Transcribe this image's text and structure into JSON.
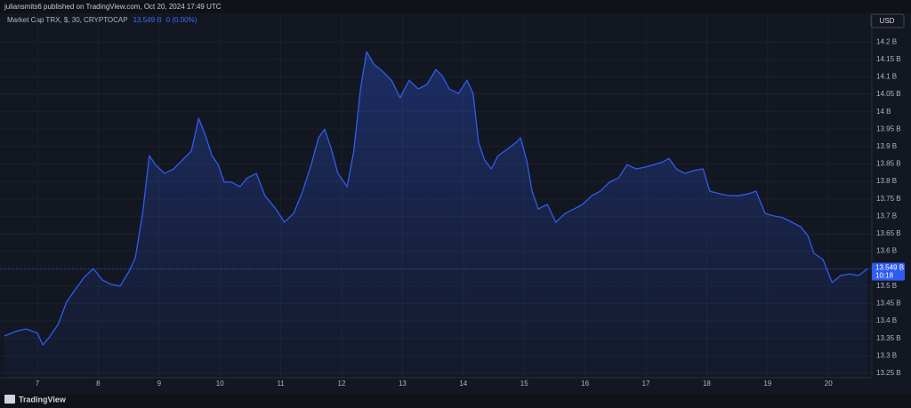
{
  "header": {
    "title": "juliansmits6 published on TradingView.com, Oct 20, 2024 17:49 UTC"
  },
  "footer": {
    "brand": "TradingView"
  },
  "chart_data": {
    "type": "area",
    "legend": {
      "symbol": "Market Cap TRX, $, 30, CRYPTOCAP",
      "value": "13.549 B",
      "change": "0 (0.00%)"
    },
    "currency": "USD",
    "last_price": {
      "value": 13.549,
      "label": "13.549 B"
    },
    "countdown": "10:18",
    "grid": true,
    "series": [
      {
        "name": "Market Cap TRX",
        "color": "#2f5cf0",
        "x": [
          6.46,
          6.68,
          6.82,
          7.0,
          7.09,
          7.19,
          7.34,
          7.48,
          7.63,
          7.77,
          7.92,
          8.07,
          8.21,
          8.36,
          8.51,
          8.61,
          8.73,
          8.84,
          8.94,
          9.09,
          9.24,
          9.38,
          9.53,
          9.65,
          9.75,
          9.87,
          9.97,
          10.07,
          10.19,
          10.33,
          10.45,
          10.6,
          10.74,
          10.92,
          11.06,
          11.21,
          11.36,
          11.5,
          11.62,
          11.72,
          11.82,
          11.94,
          12.09,
          12.2,
          12.31,
          12.41,
          12.53,
          12.67,
          12.82,
          12.96,
          13.11,
          13.26,
          13.4,
          13.55,
          13.65,
          13.77,
          13.92,
          14.06,
          14.16,
          14.25,
          14.35,
          14.46,
          14.57,
          14.72,
          14.87,
          14.94,
          15.04,
          15.13,
          15.23,
          15.38,
          15.52,
          15.67,
          15.82,
          15.96,
          16.11,
          16.25,
          16.4,
          16.55,
          16.69,
          16.84,
          16.99,
          17.13,
          17.28,
          17.38,
          17.5,
          17.64,
          17.79,
          17.94,
          18.05,
          18.23,
          18.37,
          18.52,
          18.67,
          18.81,
          18.96,
          19.11,
          19.25,
          19.4,
          19.54,
          19.66,
          19.76,
          19.91,
          20.06,
          20.2,
          20.35,
          20.49,
          20.64
        ],
        "values": [
          13.357,
          13.372,
          13.377,
          13.365,
          13.331,
          13.352,
          13.39,
          13.454,
          13.492,
          13.525,
          13.55,
          13.517,
          13.505,
          13.5,
          13.543,
          13.581,
          13.708,
          13.874,
          13.848,
          13.823,
          13.836,
          13.861,
          13.887,
          13.981,
          13.938,
          13.874,
          13.848,
          13.798,
          13.798,
          13.785,
          13.81,
          13.823,
          13.759,
          13.721,
          13.683,
          13.708,
          13.772,
          13.848,
          13.925,
          13.95,
          13.899,
          13.823,
          13.785,
          13.887,
          14.065,
          14.172,
          14.136,
          14.116,
          14.09,
          14.04,
          14.09,
          14.065,
          14.078,
          14.121,
          14.103,
          14.065,
          14.052,
          14.09,
          14.052,
          13.912,
          13.861,
          13.836,
          13.874,
          13.892,
          13.912,
          13.925,
          13.861,
          13.772,
          13.721,
          13.734,
          13.683,
          13.708,
          13.721,
          13.734,
          13.759,
          13.772,
          13.798,
          13.81,
          13.848,
          13.836,
          13.841,
          13.848,
          13.856,
          13.866,
          13.836,
          13.823,
          13.831,
          13.836,
          13.772,
          13.764,
          13.759,
          13.759,
          13.764,
          13.772,
          13.708,
          13.701,
          13.696,
          13.683,
          13.67,
          13.645,
          13.594,
          13.576,
          13.51,
          13.53,
          13.535,
          13.53,
          13.549
        ]
      }
    ],
    "xlim": [
      6.386,
      20.713
    ],
    "xticks": [
      7,
      8,
      9,
      10,
      11,
      12,
      13,
      14,
      15,
      16,
      17,
      18,
      19,
      20
    ],
    "ylim": [
      13.237,
      14.282
    ],
    "yticks": [
      {
        "value": 13.25,
        "label": "13.25 B"
      },
      {
        "value": 13.3,
        "label": "13.3 B"
      },
      {
        "value": 13.35,
        "label": "13.35 B"
      },
      {
        "value": 13.4,
        "label": "13.4 B"
      },
      {
        "value": 13.45,
        "label": "13.45 B"
      },
      {
        "value": 13.5,
        "label": "13.5 B"
      },
      {
        "value": 13.55,
        "label": "13.55 B"
      },
      {
        "value": 13.6,
        "label": "13.6 B"
      },
      {
        "value": 13.65,
        "label": "13.65 B"
      },
      {
        "value": 13.7,
        "label": "13.7 B"
      },
      {
        "value": 13.75,
        "label": "13.75 B"
      },
      {
        "value": 13.8,
        "label": "13.8 B"
      },
      {
        "value": 13.85,
        "label": "13.85 B"
      },
      {
        "value": 13.9,
        "label": "13.9 B"
      },
      {
        "value": 13.95,
        "label": "13.95 B"
      },
      {
        "value": 14,
        "label": "14 B"
      },
      {
        "value": 14.05,
        "label": "14.05 B"
      },
      {
        "value": 14.1,
        "label": "14.1 B"
      },
      {
        "value": 14.15,
        "label": "14.15 B"
      },
      {
        "value": 14.2,
        "label": "14.2 B"
      }
    ]
  }
}
